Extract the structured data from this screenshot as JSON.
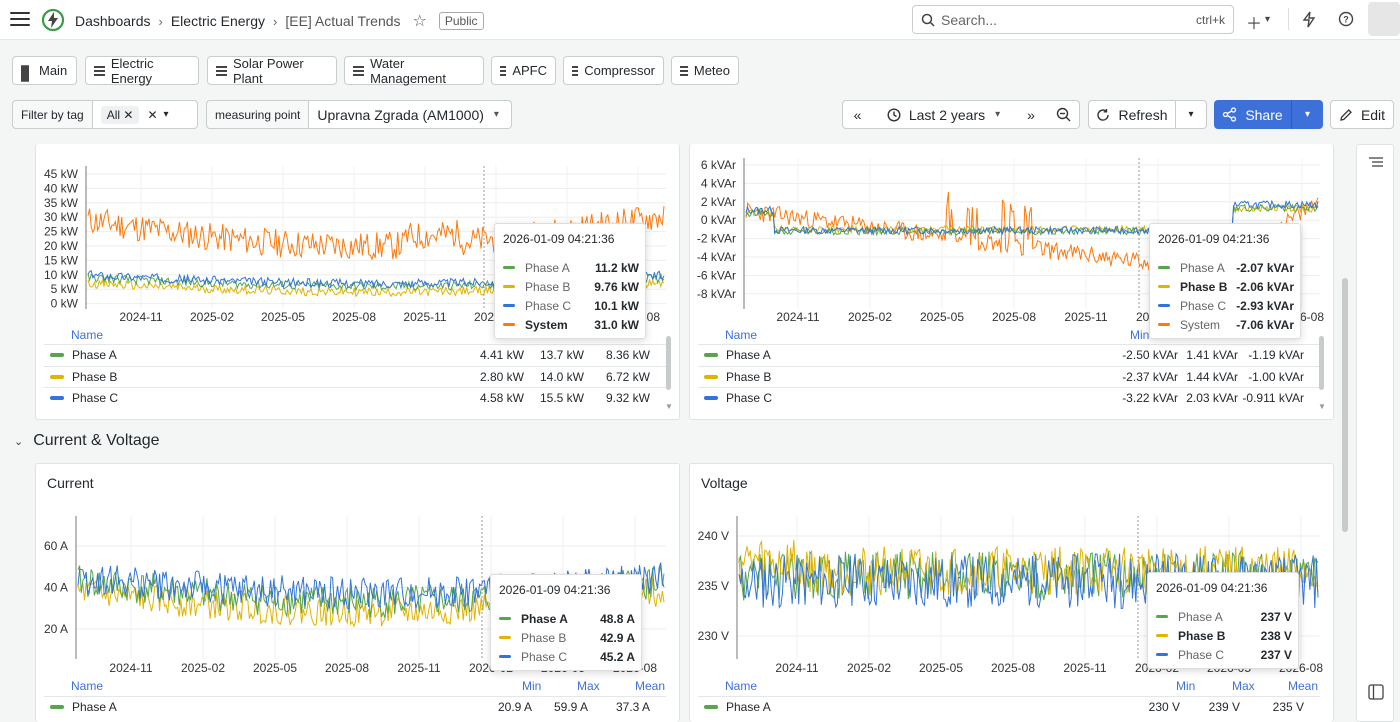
{
  "breadcrumb": [
    "Dashboards",
    "Electric Energy",
    "[EE] Actual Trends"
  ],
  "public_badge": "Public",
  "search": {
    "placeholder": "Search...",
    "shortcut": "ctrl+k"
  },
  "links": [
    "Main",
    "Electric Energy",
    "Solar Power Plant",
    "Water Management",
    "APFC",
    "Compressor",
    "Meteo"
  ],
  "filters": {
    "tag_label": "Filter by tag",
    "tag_value": "All",
    "mp_label": "measuring point",
    "mp_value": "Upravna Zgrada (AM1000)"
  },
  "time_range": "Last 2 years",
  "refresh_label": "Refresh",
  "share_label": "Share",
  "edit_label": "Edit",
  "row_title": "Current & Voltage",
  "colors": {
    "phaseA": "#56a64b",
    "phaseB": "#e0b400",
    "phaseC": "#3274d9",
    "system": "#ff780a",
    "accent": "#3d71d9"
  },
  "panels": {
    "power": {
      "yticks": [
        "45 kW",
        "40 kW",
        "35 kW",
        "30 kW",
        "25 kW",
        "20 kW",
        "15 kW",
        "10 kW",
        "5 kW",
        "0 kW"
      ],
      "xticks": [
        "2024-11",
        "2025-02",
        "2025-05",
        "2025-08",
        "2025-11",
        "2026-02",
        "2026-05",
        "2026-08"
      ],
      "legend_head": [
        "Name",
        "Min",
        "Max",
        "Mean"
      ],
      "rows": [
        {
          "name": "Phase A",
          "min": "4.41 kW",
          "max": "13.7 kW",
          "mean": "8.36 kW"
        },
        {
          "name": "Phase B",
          "min": "2.80 kW",
          "max": "14.0 kW",
          "mean": "6.72 kW"
        },
        {
          "name": "Phase C",
          "min": "4.58 kW",
          "max": "15.5 kW",
          "mean": "9.32 kW"
        }
      ],
      "tooltip": {
        "time": "2026-01-09 04:21:36",
        "rows": [
          {
            "name": "Phase A",
            "value": "11.2 kW"
          },
          {
            "name": "Phase B",
            "value": "9.76 kW"
          },
          {
            "name": "Phase C",
            "value": "10.1 kW"
          },
          {
            "name": "System",
            "value": "31.0 kW"
          }
        ]
      }
    },
    "reactive": {
      "yticks": [
        "6 kVAr",
        "4 kVAr",
        "2 kVAr",
        "0 kVAr",
        "-2 kVAr",
        "-4 kVAr",
        "-6 kVAr",
        "-8 kVAr"
      ],
      "xticks": [
        "2024-11",
        "2025-02",
        "2025-05",
        "2025-08",
        "2025-11",
        "2026-02",
        "2026-05",
        "2026-08"
      ],
      "legend_head": [
        "Name",
        "Min",
        "Max",
        "Mean"
      ],
      "rows": [
        {
          "name": "Phase A",
          "min": "-2.50 kVAr",
          "max": "1.41 kVAr",
          "mean": "-1.19 kVAr"
        },
        {
          "name": "Phase B",
          "min": "-2.37 kVAr",
          "max": "1.44 kVAr",
          "mean": "-1.00 kVAr"
        },
        {
          "name": "Phase C",
          "min": "-3.22 kVAr",
          "max": "2.03 kVAr",
          "mean": "-0.911 kVAr"
        }
      ],
      "tooltip": {
        "time": "2026-01-09 04:21:36",
        "rows": [
          {
            "name": "Phase A",
            "value": "-2.07 kVAr"
          },
          {
            "name": "Phase B",
            "value": "-2.06 kVAr"
          },
          {
            "name": "Phase C",
            "value": "-2.93 kVAr"
          },
          {
            "name": "System",
            "value": "-7.06 kVAr"
          }
        ]
      }
    },
    "current": {
      "title": "Current",
      "yticks": [
        "60 A",
        "40 A",
        "20 A"
      ],
      "xticks": [
        "2024-11",
        "2025-02",
        "2025-05",
        "2025-08",
        "2025-11",
        "2026-02",
        "2026-05",
        "2026-08"
      ],
      "legend_head": [
        "Name",
        "Min",
        "Max",
        "Mean"
      ],
      "rows": [
        {
          "name": "Phase A",
          "min": "20.9 A",
          "max": "59.9 A",
          "mean": "37.3 A"
        }
      ],
      "tooltip": {
        "time": "2026-01-09 04:21:36",
        "rows": [
          {
            "name": "Phase A",
            "value": "48.8 A"
          },
          {
            "name": "Phase B",
            "value": "42.9 A"
          },
          {
            "name": "Phase C",
            "value": "45.2 A"
          }
        ]
      }
    },
    "voltage": {
      "title": "Voltage",
      "yticks": [
        "240 V",
        "235 V",
        "230 V"
      ],
      "xticks": [
        "2024-11",
        "2025-02",
        "2025-05",
        "2025-08",
        "2025-11",
        "2026-02",
        "2026-05",
        "2026-08"
      ],
      "legend_head": [
        "Name",
        "Min",
        "Max",
        "Mean"
      ],
      "rows": [
        {
          "name": "Phase A",
          "min": "230 V",
          "max": "239 V",
          "mean": "235 V"
        }
      ],
      "tooltip": {
        "time": "2026-01-09 04:21:36",
        "rows": [
          {
            "name": "Phase A",
            "value": "237 V"
          },
          {
            "name": "Phase B",
            "value": "238 V"
          },
          {
            "name": "Phase C",
            "value": "237 V"
          }
        ]
      }
    }
  }
}
